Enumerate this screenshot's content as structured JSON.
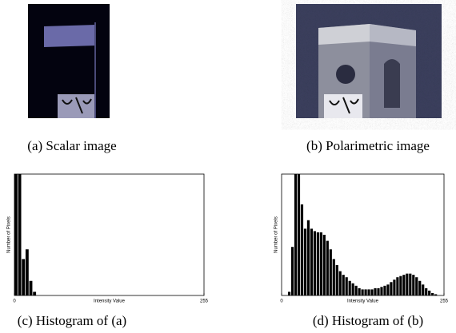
{
  "figures": [
    {
      "caption": "(a) Scalar image"
    },
    {
      "caption": "(b) Polarimetric image"
    }
  ],
  "chart_data": [
    {
      "type": "histogram",
      "caption": "(c) Histogram of (a)",
      "ylabel": "Number of Pixels",
      "xlabel": "Intensity Value",
      "bins": [
        0,
        5,
        10,
        15,
        20,
        25,
        30,
        35,
        40,
        45,
        50,
        55,
        60,
        65,
        70,
        75,
        80,
        85,
        90,
        95,
        100,
        105,
        110,
        115,
        120,
        125,
        130,
        135,
        140,
        145,
        150,
        155,
        160,
        165,
        170,
        175,
        180,
        185,
        190,
        195,
        200,
        205,
        210,
        215,
        220,
        225,
        230,
        235,
        240,
        245,
        250,
        255
      ],
      "values": [
        100,
        100,
        30,
        38,
        12,
        3,
        0,
        0,
        0,
        0,
        0,
        0,
        0,
        0,
        0,
        0,
        0,
        0,
        0,
        0,
        0,
        0,
        0,
        0,
        0,
        0,
        0,
        0,
        0,
        0,
        0,
        0,
        0,
        0,
        0,
        0,
        0,
        0,
        0,
        0,
        0,
        0,
        0,
        0,
        0,
        0,
        0,
        0,
        0,
        0,
        0
      ],
      "color": "#000000",
      "xlim": [
        0,
        255
      ],
      "ylim": [
        0,
        100
      ],
      "xticks": [
        0,
        255
      ]
    },
    {
      "type": "histogram",
      "caption": "(d) Histogram of (b)",
      "ylabel": "Number of Pixels",
      "xlabel": "Intensity Value",
      "bins": [
        0,
        5,
        10,
        15,
        20,
        25,
        30,
        35,
        40,
        45,
        50,
        55,
        60,
        65,
        70,
        75,
        80,
        85,
        90,
        95,
        100,
        105,
        110,
        115,
        120,
        125,
        130,
        135,
        140,
        145,
        150,
        155,
        160,
        165,
        170,
        175,
        180,
        185,
        190,
        195,
        200,
        205,
        210,
        215,
        220,
        225,
        230,
        235,
        240,
        245,
        250,
        255
      ],
      "values": [
        0,
        0,
        3,
        40,
        100,
        100,
        75,
        55,
        62,
        55,
        53,
        52,
        52,
        50,
        45,
        38,
        30,
        25,
        20,
        17,
        15,
        12,
        10,
        8,
        6,
        5,
        5,
        5,
        5,
        6,
        6,
        7,
        8,
        9,
        11,
        13,
        15,
        16,
        17,
        18,
        18,
        17,
        15,
        12,
        9,
        6,
        4,
        2,
        1,
        0,
        0
      ],
      "color": "#000000",
      "xlim": [
        0,
        255
      ],
      "ylim": [
        0,
        100
      ],
      "xticks": [
        0,
        255
      ]
    }
  ]
}
